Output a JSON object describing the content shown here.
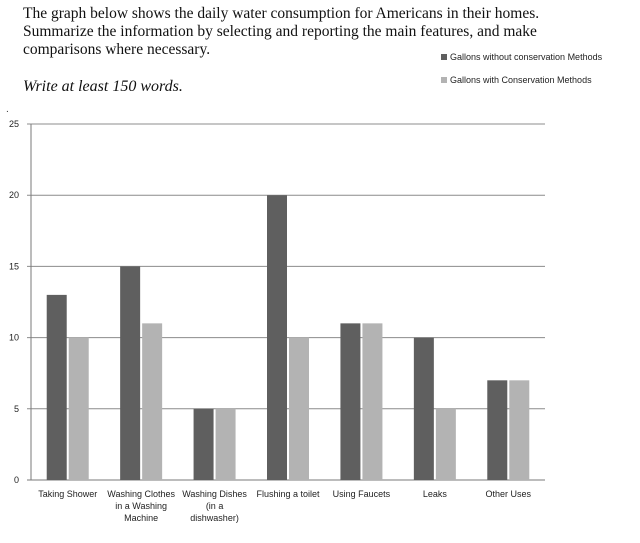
{
  "prompt": {
    "line1": "The graph below shows the daily water consumption for Americans in their homes.",
    "line2": "Summarize the information by selecting and reporting the main features, and make",
    "line3": "comparisons where necessary.",
    "instruction": "Write at least 150 words.",
    "mark": "."
  },
  "chart_data": {
    "type": "bar",
    "title": "",
    "xlabel": "",
    "ylabel": "",
    "ylim": [
      0,
      25
    ],
    "yticks": [
      0,
      5,
      10,
      15,
      20,
      25
    ],
    "grid": true,
    "legend_position": "top-right",
    "categories": [
      [
        "Taking Shower"
      ],
      [
        "Washing Clothes",
        "in a Washing",
        "Machine"
      ],
      [
        "Washing Dishes",
        "(in a",
        "dishwasher)"
      ],
      [
        "Flushing a toilet"
      ],
      [
        "Using Faucets"
      ],
      [
        "Leaks"
      ],
      [
        "Other Uses"
      ]
    ],
    "series": [
      {
        "name": "Gallons without conservation Methods",
        "color": "#5f5f5f",
        "values": [
          13,
          15,
          5,
          20,
          11,
          10,
          7
        ]
      },
      {
        "name": "Gallons with Conservation Methods",
        "color": "#b3b3b3",
        "values": [
          10,
          11,
          5,
          10,
          11,
          5,
          7
        ]
      }
    ]
  }
}
